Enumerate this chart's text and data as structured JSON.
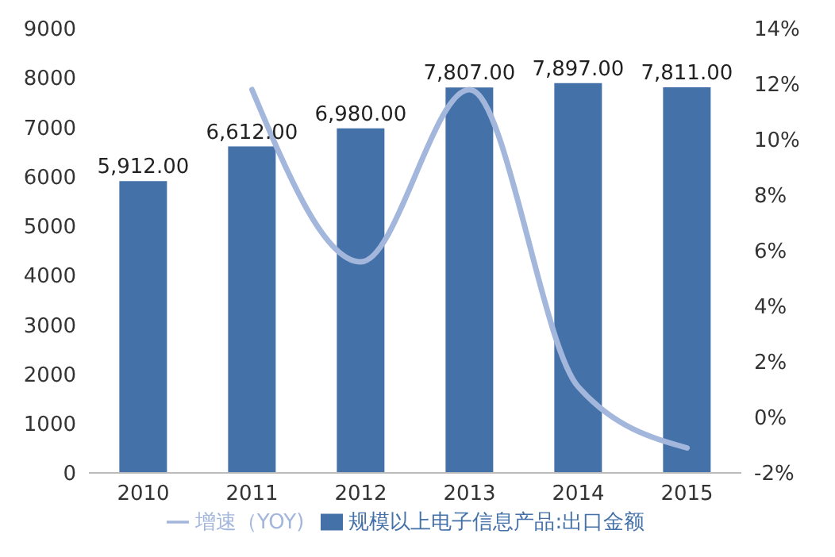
{
  "chart_data": {
    "type": "bar",
    "categories": [
      "2010",
      "2011",
      "2012",
      "2013",
      "2014",
      "2015"
    ],
    "series": [
      {
        "name": "规模以上电子信息产品:出口金额",
        "color": "#4571a9",
        "values": [
          5912,
          6612,
          6980,
          7807,
          7897,
          7811
        ],
        "value_labels": [
          "5,912.00",
          "6,612.00",
          "6,980.00",
          "7,807.00",
          "7,897.00",
          "7,811.00"
        ]
      },
      {
        "name": "增速（YOY)",
        "type": "line",
        "axis": "y2",
        "color": "#a3b6dc",
        "values": [
          null,
          11.8,
          5.6,
          11.8,
          1.1,
          -1.1
        ]
      }
    ],
    "ylim": [
      0,
      9000
    ],
    "yticks": [
      0,
      1000,
      2000,
      3000,
      4000,
      5000,
      6000,
      7000,
      8000,
      9000
    ],
    "y2lim": [
      -2,
      14
    ],
    "y2ticks": [
      {
        "value": -2,
        "label": "-2%"
      },
      {
        "value": 0,
        "label": "0%"
      },
      {
        "value": 2,
        "label": "2%"
      },
      {
        "value": 4,
        "label": "4%"
      },
      {
        "value": 6,
        "label": "6%"
      },
      {
        "value": 8,
        "label": "8%"
      },
      {
        "value": 10,
        "label": "10%"
      },
      {
        "value": 12,
        "label": "12%"
      },
      {
        "value": 14,
        "label": "14%"
      }
    ],
    "grid": false,
    "legend": "bottom",
    "marker": "none",
    "line_style": "solid"
  }
}
